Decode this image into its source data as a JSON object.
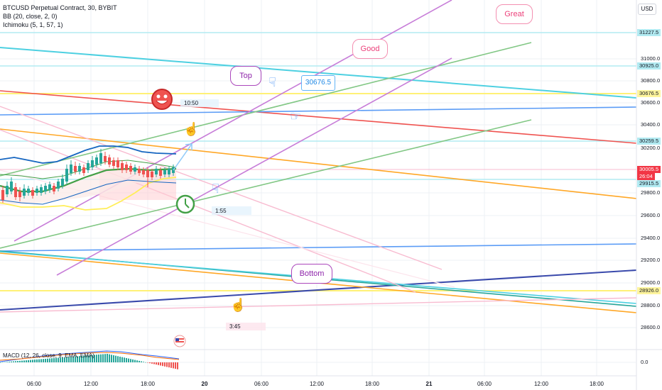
{
  "legend": {
    "symbol_line": "BTCUSD Perpetual Contract, 30, BYBIT",
    "bb_line": "BB (20, close, 2, 0)",
    "ichimoku_line": "Ichimoku (5, 1, 57, 1)"
  },
  "currency": "USD",
  "price_axis": {
    "ticks": [
      "31000.0",
      "30800.0",
      "30600.0",
      "30400.0",
      "30200.0",
      "29800.0",
      "29600.0",
      "29400.0",
      "29200.0",
      "29000.0",
      "28800.0",
      "28600.0"
    ],
    "tags": [
      {
        "label": "31227.5",
        "bg": "#b2ebf2"
      },
      {
        "label": "30925.0",
        "bg": "#b2ebf2"
      },
      {
        "label": "30676.5",
        "bg": "#fff59d"
      },
      {
        "label": "30259.5",
        "bg": "#b2ebf2"
      },
      {
        "label": "30005.5",
        "bg": "#f23645"
      },
      {
        "label": "26:04",
        "bg": "#f23645"
      },
      {
        "label": "29915.5",
        "bg": "#b2ebf2"
      },
      {
        "label": "28926.0",
        "bg": "#fff59d"
      }
    ],
    "macd_tick": "0.0"
  },
  "time_axis": {
    "ticks": [
      {
        "label": "06:00",
        "bold": false
      },
      {
        "label": "12:00",
        "bold": false
      },
      {
        "label": "18:00",
        "bold": false
      },
      {
        "label": "20",
        "bold": true
      },
      {
        "label": "06:00",
        "bold": false
      },
      {
        "label": "12:00",
        "bold": false
      },
      {
        "label": "18:00",
        "bold": false
      },
      {
        "label": "21",
        "bold": true
      },
      {
        "label": "06:00",
        "bold": false
      },
      {
        "label": "12:00",
        "bold": false
      },
      {
        "label": "18:00",
        "bold": false
      }
    ]
  },
  "annotations": {
    "great": "Great",
    "good": "Good",
    "top": "Top",
    "bottom": "Bottom",
    "price_note": "30676.5",
    "duration_1": "10:50",
    "duration_2": "1:55",
    "duration_3": "3:45"
  },
  "macd_label": "MACD (12, 26, close, 9, EMA, EMA)",
  "icons": [
    "smiley-face-icon",
    "clock-icon",
    "hand-pointer-icon",
    "flag-icon"
  ],
  "colors": {
    "violet": "#c77dd8",
    "green": "#81c784",
    "cyan": "#4dd0e1",
    "red": "#ef5350",
    "blue": "#5b9cf6",
    "orange": "#ffa726",
    "pink": "#f8bbd0",
    "navy": "#3949ab",
    "yellow": "#ffee58"
  }
}
